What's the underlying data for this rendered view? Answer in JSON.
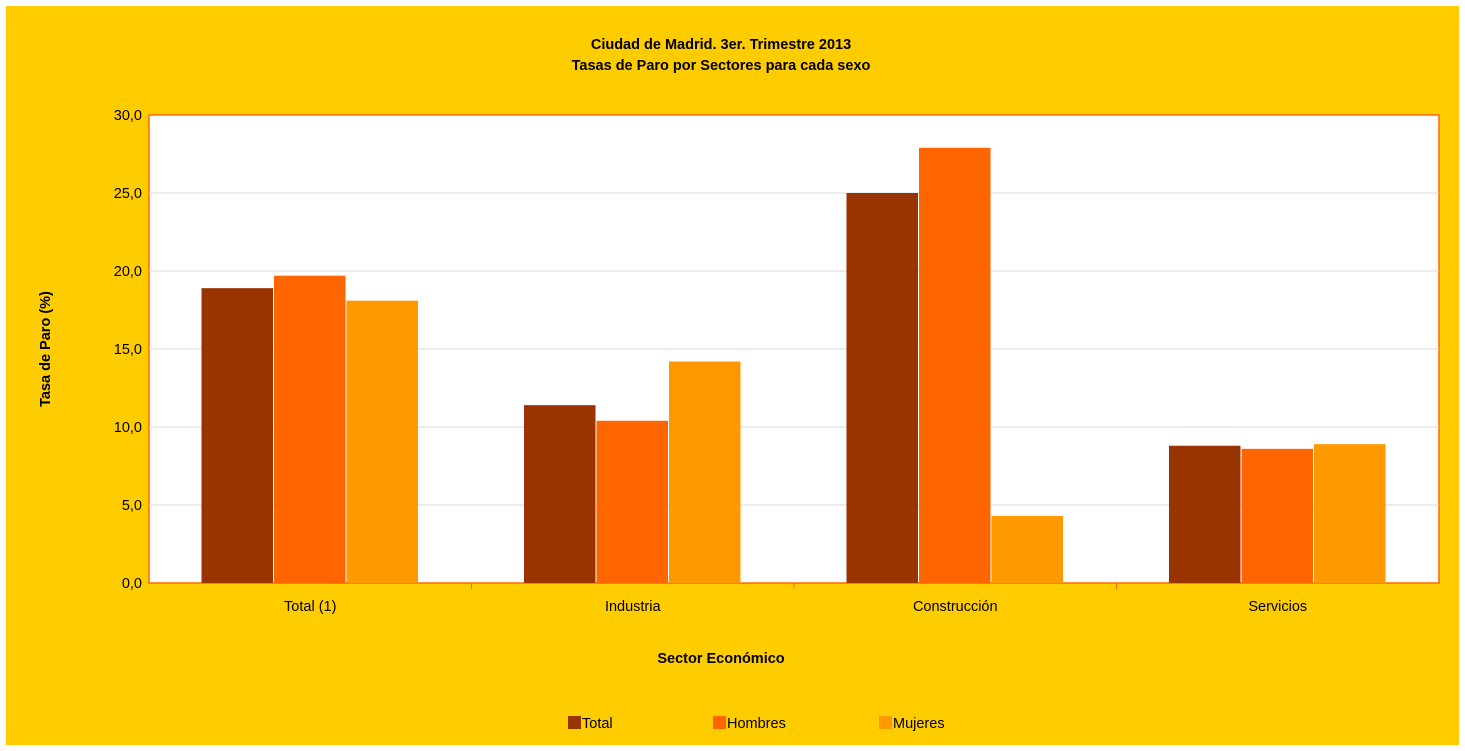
{
  "chart_data": {
    "type": "bar",
    "title": [
      "Ciudad de Madrid. 3er. Trimestre 2013",
      "Tasas de Paro por Sectores para cada sexo"
    ],
    "xlabel": "Sector Económico",
    "ylabel": "Tasa de Paro (%)",
    "categories": [
      "Total (1)",
      "Industria",
      "Construcción",
      "Servicios"
    ],
    "series": [
      {
        "name": "Total",
        "color": "#993300",
        "values": [
          18.9,
          11.4,
          25.0,
          8.8
        ]
      },
      {
        "name": "Hombres",
        "color": "#FF6600",
        "values": [
          19.7,
          10.4,
          27.9,
          8.6
        ]
      },
      {
        "name": "Mujeres",
        "color": "#FF9900",
        "values": [
          18.1,
          14.2,
          4.3,
          8.9
        ]
      }
    ],
    "ylim": [
      0,
      30
    ],
    "yticks": [
      "0,0",
      "5,0",
      "10,0",
      "15,0",
      "20,0",
      "25,0",
      "30,0"
    ],
    "ytick_values": [
      0,
      5,
      10,
      15,
      20,
      25,
      30
    ],
    "grid": true,
    "legend_position": "bottom"
  }
}
